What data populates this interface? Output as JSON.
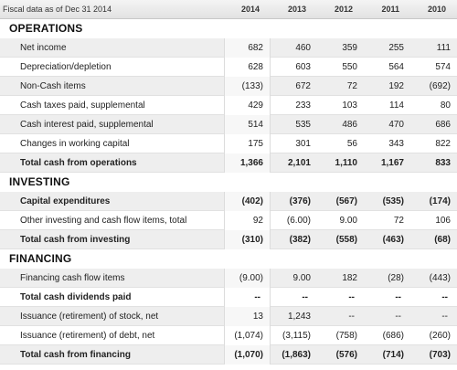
{
  "header": {
    "label": "Fiscal data as of Dec 31 2014",
    "years": [
      "2014",
      "2013",
      "2012",
      "2011",
      "2010"
    ]
  },
  "sections": [
    {
      "title": "OPERATIONS",
      "rows": [
        {
          "label": "Net income",
          "values": [
            "682",
            "460",
            "359",
            "255",
            "111"
          ],
          "total": false
        },
        {
          "label": "Depreciation/depletion",
          "values": [
            "628",
            "603",
            "550",
            "564",
            "574"
          ],
          "total": false
        },
        {
          "label": "Non-Cash items",
          "values": [
            "(133)",
            "672",
            "72",
            "192",
            "(692)"
          ],
          "total": false
        },
        {
          "label": "Cash taxes paid, supplemental",
          "values": [
            "429",
            "233",
            "103",
            "114",
            "80"
          ],
          "total": false
        },
        {
          "label": "Cash interest paid, supplemental",
          "values": [
            "514",
            "535",
            "486",
            "470",
            "686"
          ],
          "total": false
        },
        {
          "label": "Changes in working capital",
          "values": [
            "175",
            "301",
            "56",
            "343",
            "822"
          ],
          "total": false
        },
        {
          "label": "Total cash from operations",
          "values": [
            "1,366",
            "2,101",
            "1,110",
            "1,167",
            "833"
          ],
          "total": true
        }
      ]
    },
    {
      "title": "INVESTING",
      "rows": [
        {
          "label": "Capital expenditures",
          "values": [
            "(402)",
            "(376)",
            "(567)",
            "(535)",
            "(174)"
          ],
          "total": true
        },
        {
          "label": "Other investing and cash flow items, total",
          "values": [
            "92",
            "(6.00)",
            "9.00",
            "72",
            "106"
          ],
          "total": false
        },
        {
          "label": "Total cash from investing",
          "values": [
            "(310)",
            "(382)",
            "(558)",
            "(463)",
            "(68)"
          ],
          "total": true
        }
      ]
    },
    {
      "title": "FINANCING",
      "rows": [
        {
          "label": "Financing cash flow items",
          "values": [
            "(9.00)",
            "9.00",
            "182",
            "(28)",
            "(443)"
          ],
          "total": false
        },
        {
          "label": "Total cash dividends paid",
          "values": [
            "--",
            "--",
            "--",
            "--",
            "--"
          ],
          "total": true
        },
        {
          "label": "Issuance (retirement) of stock, net",
          "values": [
            "13",
            "1,243",
            "--",
            "--",
            "--"
          ],
          "total": false
        },
        {
          "label": "Issuance (retirement) of debt, net",
          "values": [
            "(1,074)",
            "(3,115)",
            "(758)",
            "(686)",
            "(260)"
          ],
          "total": false
        },
        {
          "label": "Total cash from financing",
          "values": [
            "(1,070)",
            "(1,863)",
            "(576)",
            "(714)",
            "(703)"
          ],
          "total": true
        }
      ]
    }
  ]
}
